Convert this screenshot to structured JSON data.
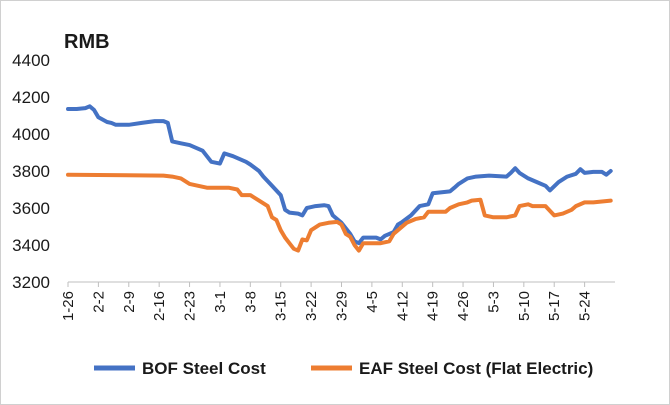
{
  "chart_data": {
    "type": "line",
    "unit_label": "RMB",
    "ylim": [
      3200,
      4400
    ],
    "yticks": [
      3200,
      3400,
      3600,
      3800,
      4000,
      4200,
      4400
    ],
    "xticks": [
      "1-26",
      "2-2",
      "2-9",
      "2-16",
      "2-23",
      "3-1",
      "3-8",
      "3-15",
      "3-22",
      "3-29",
      "4-5",
      "4-12",
      "4-19",
      "4-26",
      "5-3",
      "5-10",
      "5-17",
      "5-24"
    ],
    "x_days": [
      0,
      7,
      14,
      21,
      28,
      35,
      42,
      49,
      56,
      63,
      70,
      77,
      84,
      91,
      98,
      105,
      112,
      119
    ],
    "x_range": [
      0,
      126
    ],
    "grid": false,
    "legend": "bottom",
    "series": [
      {
        "name": "BOF Steel Cost",
        "color": "#4472C4",
        "points": [
          [
            0,
            4135
          ],
          [
            2,
            4135
          ],
          [
            4,
            4140
          ],
          [
            5,
            4150
          ],
          [
            6,
            4130
          ],
          [
            7,
            4090
          ],
          [
            9,
            4065
          ],
          [
            10,
            4060
          ],
          [
            11,
            4050
          ],
          [
            14,
            4050
          ],
          [
            17,
            4060
          ],
          [
            20,
            4070
          ],
          [
            22,
            4070
          ],
          [
            23,
            4060
          ],
          [
            24,
            3960
          ],
          [
            26,
            3950
          ],
          [
            28,
            3940
          ],
          [
            31,
            3910
          ],
          [
            33,
            3850
          ],
          [
            35,
            3840
          ],
          [
            36,
            3895
          ],
          [
            38,
            3880
          ],
          [
            41,
            3850
          ],
          [
            42,
            3835
          ],
          [
            44,
            3800
          ],
          [
            45,
            3770
          ],
          [
            47,
            3720
          ],
          [
            49,
            3670
          ],
          [
            50,
            3590
          ],
          [
            51,
            3575
          ],
          [
            53,
            3570
          ],
          [
            54,
            3560
          ],
          [
            55,
            3600
          ],
          [
            56,
            3605
          ],
          [
            57,
            3610
          ],
          [
            59,
            3615
          ],
          [
            60,
            3610
          ],
          [
            61,
            3560
          ],
          [
            63,
            3520
          ],
          [
            65,
            3460
          ],
          [
            66,
            3420
          ],
          [
            67,
            3410
          ],
          [
            68,
            3440
          ],
          [
            71,
            3440
          ],
          [
            72,
            3430
          ],
          [
            73,
            3450
          ],
          [
            75,
            3470
          ],
          [
            76,
            3510
          ],
          [
            77,
            3525
          ],
          [
            79,
            3560
          ],
          [
            81,
            3610
          ],
          [
            83,
            3620
          ],
          [
            84,
            3680
          ],
          [
            88,
            3690
          ],
          [
            89,
            3710
          ],
          [
            90,
            3730
          ],
          [
            92,
            3760
          ],
          [
            94,
            3770
          ],
          [
            97,
            3775
          ],
          [
            101,
            3770
          ],
          [
            102,
            3790
          ],
          [
            103,
            3815
          ],
          [
            104,
            3790
          ],
          [
            106,
            3760
          ],
          [
            108,
            3740
          ],
          [
            110,
            3720
          ],
          [
            111,
            3695
          ],
          [
            113,
            3740
          ],
          [
            115,
            3770
          ],
          [
            117,
            3785
          ],
          [
            118,
            3810
          ],
          [
            119,
            3790
          ],
          [
            121,
            3795
          ],
          [
            123,
            3795
          ],
          [
            124,
            3780
          ],
          [
            125,
            3800
          ]
        ]
      },
      {
        "name": "EAF Steel Cost (Flat Electric)",
        "color": "#ED7D31",
        "points": [
          [
            0,
            3780
          ],
          [
            22,
            3775
          ],
          [
            24,
            3770
          ],
          [
            26,
            3760
          ],
          [
            28,
            3730
          ],
          [
            30,
            3720
          ],
          [
            32,
            3710
          ],
          [
            37,
            3710
          ],
          [
            39,
            3700
          ],
          [
            40,
            3670
          ],
          [
            42,
            3670
          ],
          [
            44,
            3640
          ],
          [
            46,
            3610
          ],
          [
            47,
            3550
          ],
          [
            48,
            3535
          ],
          [
            49,
            3480
          ],
          [
            50,
            3440
          ],
          [
            51,
            3410
          ],
          [
            52,
            3380
          ],
          [
            53,
            3370
          ],
          [
            54,
            3430
          ],
          [
            55,
            3425
          ],
          [
            56,
            3480
          ],
          [
            58,
            3510
          ],
          [
            60,
            3520
          ],
          [
            62,
            3525
          ],
          [
            63,
            3510
          ],
          [
            64,
            3460
          ],
          [
            65,
            3445
          ],
          [
            66,
            3400
          ],
          [
            67,
            3370
          ],
          [
            68,
            3410
          ],
          [
            72,
            3410
          ],
          [
            74,
            3420
          ],
          [
            75,
            3460
          ],
          [
            76,
            3480
          ],
          [
            78,
            3520
          ],
          [
            80,
            3540
          ],
          [
            82,
            3550
          ],
          [
            83,
            3580
          ],
          [
            87,
            3580
          ],
          [
            88,
            3600
          ],
          [
            90,
            3620
          ],
          [
            92,
            3630
          ],
          [
            93,
            3640
          ],
          [
            95,
            3645
          ],
          [
            96,
            3560
          ],
          [
            98,
            3550
          ],
          [
            101,
            3550
          ],
          [
            103,
            3560
          ],
          [
            104,
            3610
          ],
          [
            106,
            3620
          ],
          [
            107,
            3610
          ],
          [
            110,
            3610
          ],
          [
            112,
            3560
          ],
          [
            114,
            3570
          ],
          [
            116,
            3590
          ],
          [
            117,
            3610
          ],
          [
            119,
            3630
          ],
          [
            121,
            3630
          ],
          [
            123,
            3635
          ],
          [
            125,
            3640
          ]
        ]
      }
    ]
  }
}
